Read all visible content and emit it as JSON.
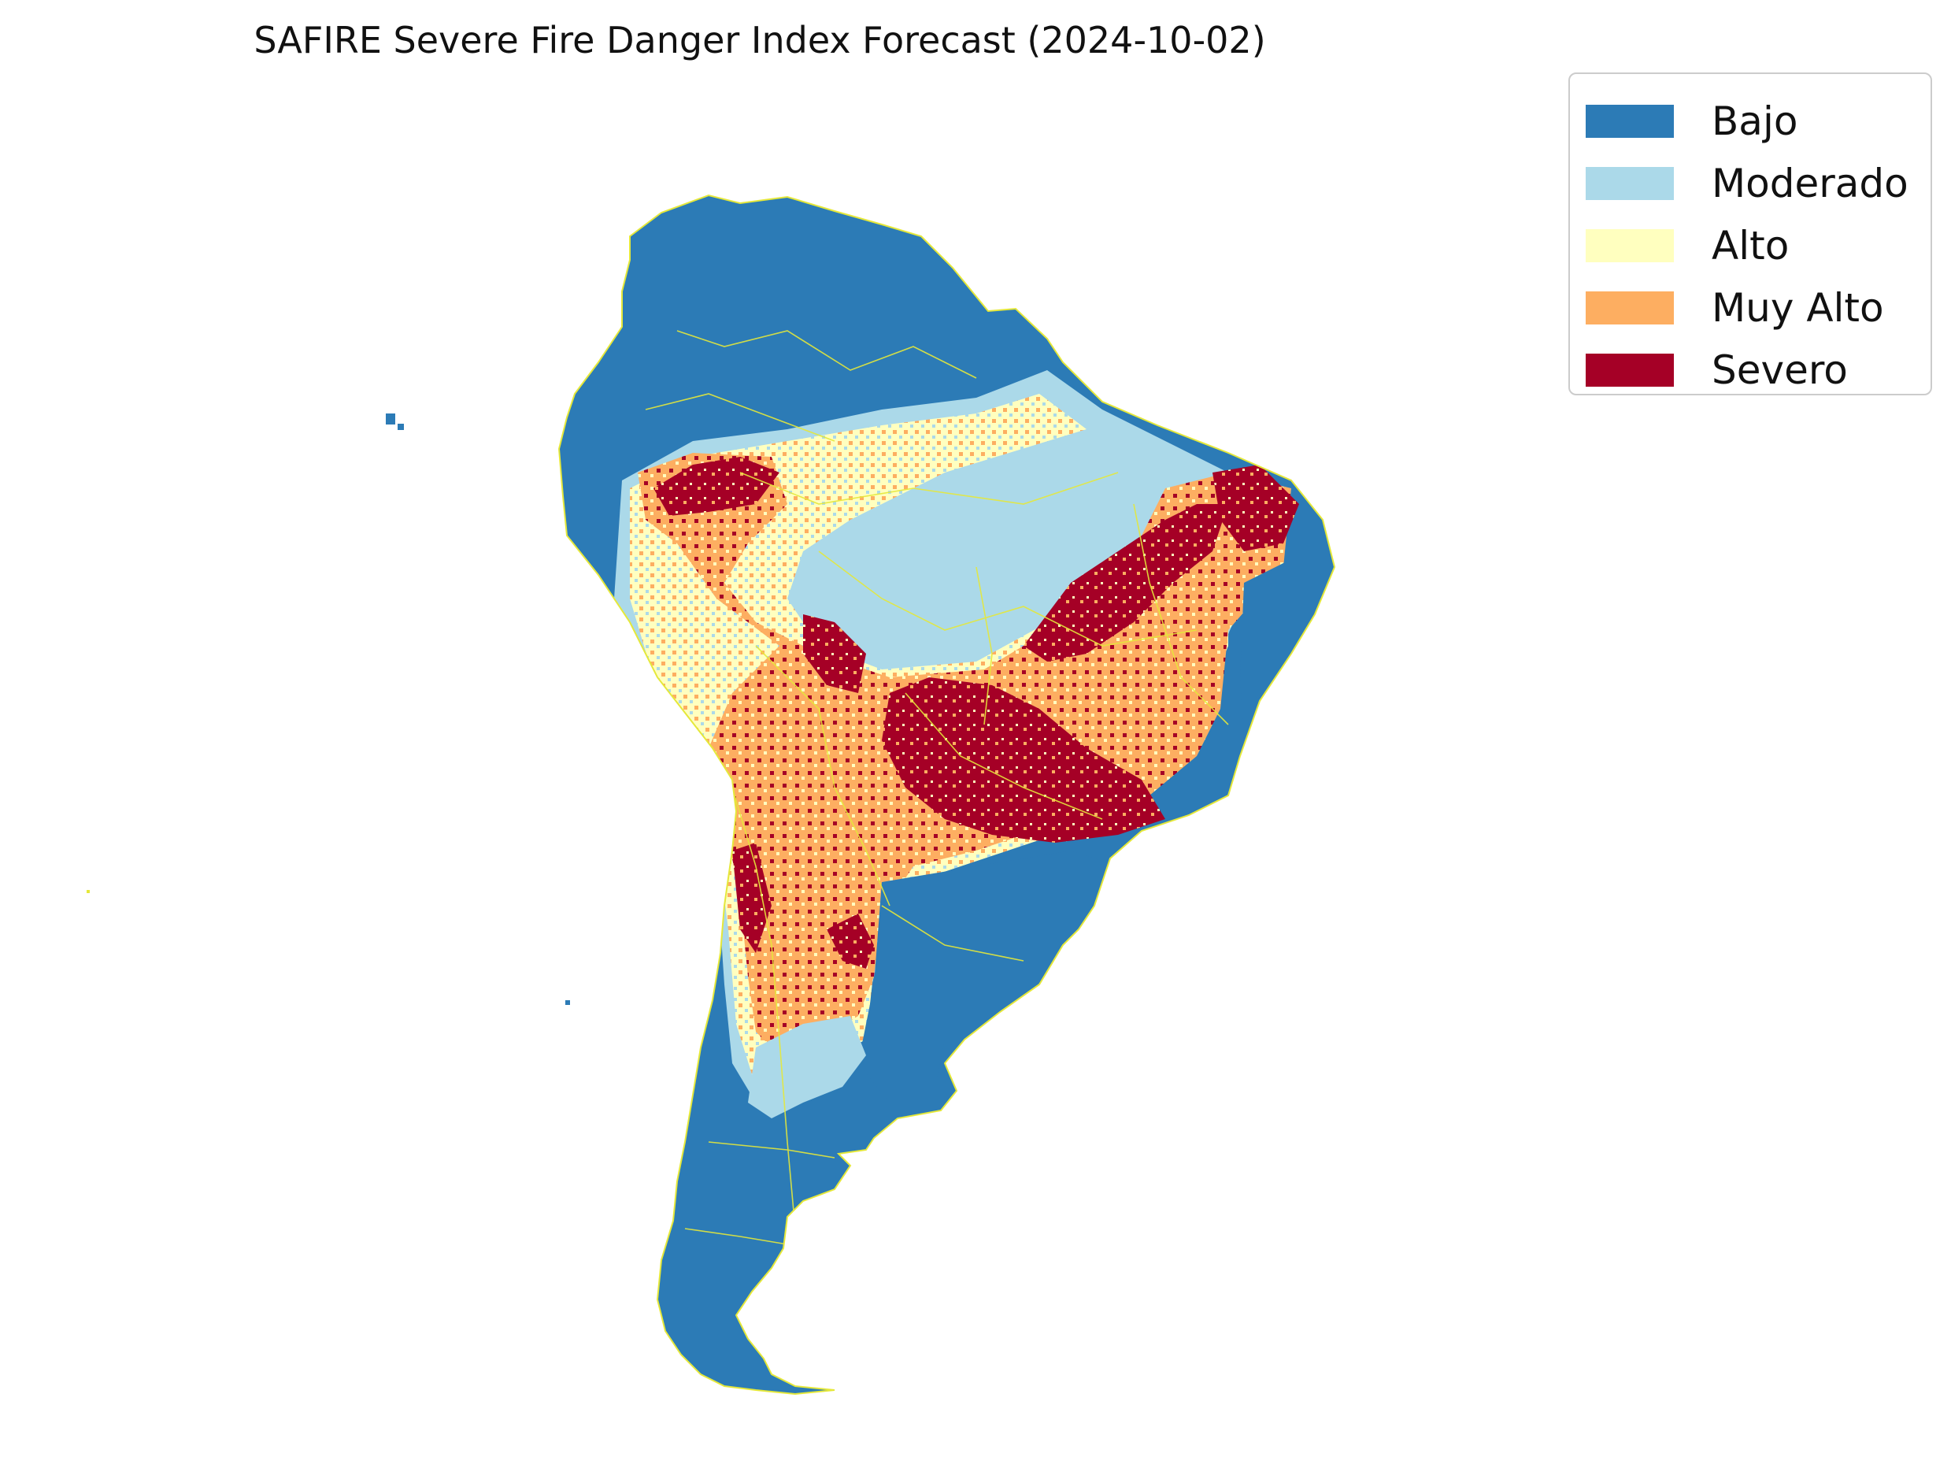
{
  "title": "SAFIRE Severe Fire Danger Index Forecast (2024-10-02)",
  "legend": {
    "placement": "upper-right-outside",
    "items": [
      {
        "label": "Bajo",
        "color": "#2c7bb6"
      },
      {
        "label": "Moderado",
        "color": "#abd9e9"
      },
      {
        "label": "Alto",
        "color": "#ffffbf"
      },
      {
        "label": "Muy Alto",
        "color": "#fdae61"
      },
      {
        "label": "Severo",
        "color": "#a50026"
      }
    ]
  },
  "map": {
    "region": "South America",
    "border_color": "#e5e83a",
    "background": "#ffffff"
  }
}
